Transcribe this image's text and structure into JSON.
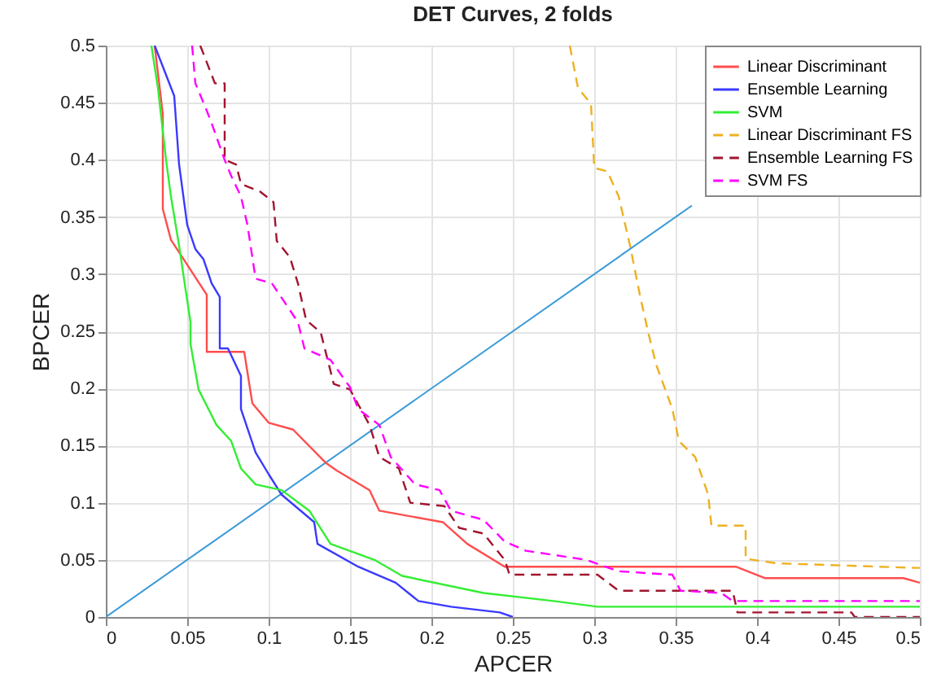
{
  "chart_data": {
    "type": "line",
    "title": "DET Curves, 2 folds",
    "xlabel": "APCER",
    "ylabel": "BPCER",
    "xlim": [
      0,
      0.5
    ],
    "ylim": [
      0,
      0.5
    ],
    "xticks": [
      0,
      0.05,
      0.1,
      0.15,
      0.2,
      0.25,
      0.3,
      0.35,
      0.4,
      0.45,
      0.5
    ],
    "yticks": [
      0,
      0.05,
      0.1,
      0.15,
      0.2,
      0.25,
      0.3,
      0.35,
      0.4,
      0.45,
      0.5
    ],
    "grid": true,
    "legend": "top right",
    "marker": "none",
    "series": [
      {
        "name": "Linear Discriminant",
        "color": "#ff4d4d",
        "line_style": "solid",
        "x": [
          0.03,
          0.035,
          0.035,
          0.04,
          0.062,
          0.062,
          0.085,
          0.09,
          0.1,
          0.115,
          0.135,
          0.142,
          0.162,
          0.168,
          0.207,
          0.222,
          0.245,
          0.387,
          0.405,
          0.49,
          0.5
        ],
        "values": [
          0.5,
          0.44,
          0.357,
          0.33,
          0.282,
          0.232,
          0.232,
          0.187,
          0.17,
          0.164,
          0.135,
          0.128,
          0.111,
          0.093,
          0.083,
          0.064,
          0.044,
          0.044,
          0.034,
          0.034,
          0.03
        ]
      },
      {
        "name": "Ensemble Learning",
        "color": "#3a3aff",
        "line_style": "solid",
        "x": [
          0.03,
          0.042,
          0.045,
          0.05,
          0.055,
          0.06,
          0.065,
          0.07,
          0.07,
          0.075,
          0.083,
          0.083,
          0.092,
          0.1,
          0.108,
          0.128,
          0.13,
          0.155,
          0.178,
          0.192,
          0.212,
          0.242,
          0.25
        ],
        "values": [
          0.5,
          0.456,
          0.396,
          0.343,
          0.322,
          0.313,
          0.292,
          0.28,
          0.235,
          0.235,
          0.211,
          0.182,
          0.144,
          0.125,
          0.107,
          0.083,
          0.064,
          0.044,
          0.03,
          0.014,
          0.009,
          0.004,
          0
        ]
      },
      {
        "name": "SVM",
        "color": "#33ee33",
        "line_style": "solid",
        "x": [
          0.028,
          0.032,
          0.037,
          0.04,
          0.045,
          0.048,
          0.052,
          0.052,
          0.057,
          0.068,
          0.077,
          0.083,
          0.092,
          0.108,
          0.125,
          0.138,
          0.165,
          0.182,
          0.232,
          0.275,
          0.302,
          0.5
        ],
        "values": [
          0.5,
          0.463,
          0.4,
          0.368,
          0.325,
          0.296,
          0.258,
          0.239,
          0.199,
          0.168,
          0.154,
          0.13,
          0.116,
          0.111,
          0.093,
          0.064,
          0.05,
          0.036,
          0.021,
          0.014,
          0.009,
          0.009
        ]
      },
      {
        "name": "Linear Discriminant FS",
        "color": "#edb120",
        "line_style": "dashed",
        "x": [
          0.285,
          0.29,
          0.298,
          0.3,
          0.308,
          0.315,
          0.322,
          0.328,
          0.333,
          0.338,
          0.348,
          0.352,
          0.362,
          0.37,
          0.372,
          0.393,
          0.393,
          0.412,
          0.497,
          0.5
        ],
        "values": [
          0.5,
          0.463,
          0.449,
          0.393,
          0.39,
          0.368,
          0.325,
          0.282,
          0.25,
          0.221,
          0.182,
          0.154,
          0.14,
          0.107,
          0.08,
          0.08,
          0.051,
          0.047,
          0.043,
          0.043
        ]
      },
      {
        "name": "Ensemble Learning FS",
        "color": "#a2142f",
        "line_style": "dashed",
        "x": [
          0.058,
          0.067,
          0.073,
          0.073,
          0.08,
          0.083,
          0.095,
          0.103,
          0.105,
          0.113,
          0.118,
          0.123,
          0.132,
          0.14,
          0.15,
          0.162,
          0.168,
          0.18,
          0.187,
          0.208,
          0.217,
          0.232,
          0.245,
          0.248,
          0.302,
          0.315,
          0.385,
          0.388,
          0.458,
          0.46,
          0.5
        ],
        "values": [
          0.5,
          0.467,
          0.467,
          0.4,
          0.396,
          0.379,
          0.372,
          0.363,
          0.329,
          0.315,
          0.292,
          0.26,
          0.249,
          0.204,
          0.199,
          0.168,
          0.14,
          0.13,
          0.1,
          0.097,
          0.078,
          0.073,
          0.05,
          0.037,
          0.037,
          0.023,
          0.023,
          0.004,
          0.004,
          0,
          0
        ]
      },
      {
        "name": "SVM FS",
        "color": "#ff00ff",
        "line_style": "dashed",
        "x": [
          0.053,
          0.055,
          0.062,
          0.065,
          0.073,
          0.077,
          0.083,
          0.087,
          0.092,
          0.102,
          0.11,
          0.118,
          0.122,
          0.138,
          0.15,
          0.155,
          0.168,
          0.175,
          0.19,
          0.205,
          0.212,
          0.232,
          0.245,
          0.258,
          0.295,
          0.315,
          0.348,
          0.353,
          0.378,
          0.385,
          0.5
        ],
        "values": [
          0.5,
          0.467,
          0.443,
          0.432,
          0.4,
          0.386,
          0.368,
          0.343,
          0.296,
          0.292,
          0.275,
          0.258,
          0.235,
          0.225,
          0.201,
          0.182,
          0.168,
          0.14,
          0.116,
          0.111,
          0.093,
          0.085,
          0.066,
          0.058,
          0.05,
          0.04,
          0.037,
          0.023,
          0.021,
          0.014,
          0.014
        ]
      },
      {
        "color": "#3a9ad9",
        "line_style": "solid",
        "x": [
          0,
          0.36
        ],
        "values": [
          0,
          0.36
        ]
      }
    ]
  }
}
